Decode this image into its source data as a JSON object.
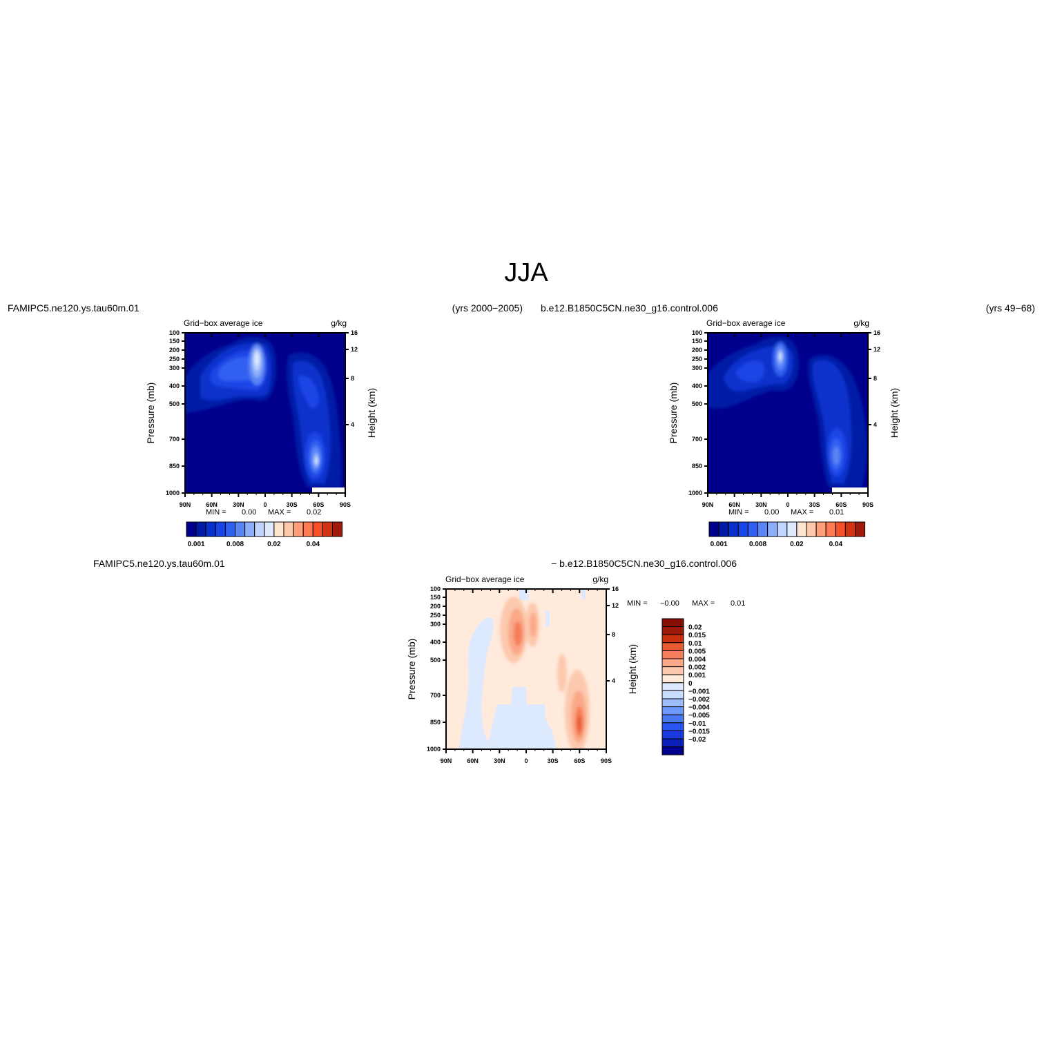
{
  "page": {
    "title": "JJA",
    "colors": {
      "abs_scale": [
        "#00008c",
        "#001aa6",
        "#0a30cc",
        "#1a45e6",
        "#3060f0",
        "#5a85f5",
        "#8cadfa",
        "#c0d5ff",
        "#e0eaff",
        "#ffe4d0",
        "#ffc8a8",
        "#ff9f7a",
        "#ff7a50",
        "#f5502a",
        "#d23214",
        "#a01a0a"
      ],
      "diff_scale": [
        "#00008c",
        "#0a20b8",
        "#1a3ae0",
        "#2a55f0",
        "#4a78f5",
        "#6e98fa",
        "#9cbcfc",
        "#c8dcff",
        "#dce9ff",
        "#ffeadb",
        "#fcc9ae",
        "#fba888",
        "#f57e5a",
        "#e85a32",
        "#c8300f",
        "#a01a0a",
        "#880b04"
      ]
    }
  },
  "panel1": {
    "case_name": "FAMIPC5.ne120.ys.tau60m.01",
    "years": "(yrs 2000−2005)",
    "variable": "Grid−box average ice",
    "units": "g/kg",
    "min_label": "MIN =",
    "min_value": "0.00",
    "max_label": "MAX =",
    "max_value": "0.02"
  },
  "panel2": {
    "case_name": "b.e12.B1850C5CN.ne30_g16.control.006",
    "years": "(yrs 49−68)",
    "variable": "Grid−box average ice",
    "units": "g/kg",
    "min_label": "MIN =",
    "min_value": "0.00",
    "max_label": "MAX =",
    "max_value": "0.01"
  },
  "panel3": {
    "case_name_left": "FAMIPC5.ne120.ys.tau60m.01",
    "case_name_right": "− b.e12.B1850C5CN.ne30_g16.control.006",
    "variable": "Grid−box average ice",
    "units": "g/kg",
    "min_label": "MIN =",
    "min_value": "−0.00",
    "max_label": "MAX =",
    "max_value": "0.01"
  },
  "axes": {
    "ylabel_left": "Pressure (mb)",
    "ylabel_right": "Height (km)",
    "pressure_ticks": [
      "100",
      "150",
      "200",
      "250",
      "300",
      "400",
      "500",
      "700",
      "850",
      "1000"
    ],
    "height_ticks": [
      "16",
      "12",
      "8",
      "4"
    ],
    "lat_ticks": [
      "90N",
      "60N",
      "30N",
      "0",
      "30S",
      "60S",
      "90S"
    ]
  },
  "colorbar_abs": {
    "labels": [
      "0.001",
      "0.008",
      "0.02",
      "0.04"
    ]
  },
  "colorbar_diff": {
    "labels": [
      "0.02",
      "0.015",
      "0.01",
      "0.005",
      "0.004",
      "0.002",
      "0.001",
      "0",
      "−0.001",
      "−0.002",
      "−0.004",
      "−0.005",
      "−0.01",
      "−0.015",
      "−0.02"
    ]
  },
  "chart_data": [
    {
      "type": "heatmap",
      "title": "Grid−box average ice",
      "units": "g/kg",
      "xlabel": "",
      "ylabel": "Pressure (mb)",
      "y2label": "Height (km)",
      "x_range": [
        "90N",
        "90S"
      ],
      "y_range_mb": [
        100,
        1000
      ],
      "y2_range_km": [
        0,
        16
      ],
      "min": 0.0,
      "max": 0.02,
      "features": [
        {
          "lat": 10,
          "p_mb": 220,
          "value": 0.02,
          "note": "upper-tropospheric maximum near equator"
        },
        {
          "lat": -60,
          "p_mb": 800,
          "value": 0.02,
          "note": "low-level maximum near 60S"
        },
        {
          "lat": 55,
          "p_mb": 330,
          "value": 0.008
        }
      ]
    },
    {
      "type": "heatmap",
      "title": "Grid−box average ice",
      "units": "g/kg",
      "xlabel": "",
      "ylabel": "Pressure (mb)",
      "y2label": "Height (km)",
      "x_range": [
        "90N",
        "90S"
      ],
      "y_range_mb": [
        100,
        1000
      ],
      "y2_range_km": [
        0,
        16
      ],
      "min": 0.0,
      "max": 0.01,
      "features": [
        {
          "lat": 10,
          "p_mb": 230,
          "value": 0.01
        },
        {
          "lat": -58,
          "p_mb": 780,
          "value": 0.008
        },
        {
          "lat": 55,
          "p_mb": 330,
          "value": 0.005
        }
      ]
    },
    {
      "type": "heatmap",
      "title": "Grid−box average ice",
      "units": "g/kg",
      "xlabel": "",
      "ylabel": "Pressure (mb)",
      "y2label": "Height (km)",
      "x_range": [
        "90N",
        "90S"
      ],
      "y_range_mb": [
        100,
        1000
      ],
      "y2_range_km": [
        0,
        16
      ],
      "min": -0.0,
      "max": 0.01,
      "features": [
        {
          "lat": 10,
          "p_mb": 350,
          "value": 0.005
        },
        {
          "lat": -60,
          "p_mb": 820,
          "value": 0.01
        },
        {
          "lat": 45,
          "p_mb": 600,
          "value": -0.001
        }
      ]
    }
  ]
}
